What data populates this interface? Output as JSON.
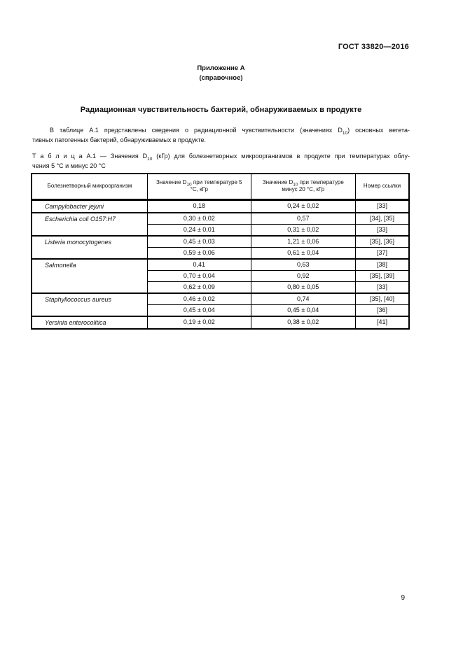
{
  "doc_number": "ГОСТ 33820—2016",
  "annex": {
    "title": "Приложение А",
    "subtitle": "(справочное)"
  },
  "section_title": "Радиационная чувствительность бактерий, обнаруживаемых в продукте",
  "intro": {
    "line1_before": "В таблице А.1 представлены сведения о радиационной чувствительности (значениях D",
    "line1_sub": "10",
    "line1_after": ") основных вегета-",
    "line2": "тивных патогенных бактерий, обнаруживаемых в продукте."
  },
  "table_caption": {
    "line1_before": "Т а б л и ц а  А.1 — Значения D",
    "line1_sub": "10",
    "line1_after": " (кГр) для болезнетворных микроорганизмов в продукте при температурах облу-",
    "line2": "чения 5 °С и минус 20 °С"
  },
  "table": {
    "headers": {
      "organism": "Болезнетворный микроорганизм",
      "d5_before": "Значение D",
      "d5_sub": "10",
      "d5_after": " при температуре 5 °С, кГр",
      "d20_before": "Значение D",
      "d20_sub": "10",
      "d20_after": " при температуре минус 20 °С, кГр",
      "ref": "Номер ссылки"
    },
    "rows": [
      {
        "organism": "Campylobacter jejuni",
        "d5": "0,18",
        "d20": "0,24 ± 0,02",
        "ref": "[33]"
      },
      {
        "organism": "Escherichia coli О157:H7",
        "d5": "0,30 ± 0,02",
        "d20": "0,57",
        "ref": "[34], [35]"
      },
      {
        "d5": "0,24 ± 0,01",
        "d20": "0,31 ± 0,02",
        "ref": "[33]"
      },
      {
        "organism": "Listeria monocytogenes",
        "d5": "0,45 ± 0,03",
        "d20": "1,21 ± 0,06",
        "ref": "[35], [36]"
      },
      {
        "d5": "0,59 ± 0,06",
        "d20": "0,61 ± 0,04",
        "ref": "[37]"
      },
      {
        "organism": "Salmonella",
        "d5": "0,41",
        "d20": "0,63",
        "ref": "[38]"
      },
      {
        "d5": "0,70 ± 0,04",
        "d20": "0,92",
        "ref": "[35], [39]"
      },
      {
        "d5": "0,62 ± 0,09",
        "d20": "0,80 ± 0,05",
        "ref": "[33]"
      },
      {
        "organism": "Staphyllococcus aureus",
        "d5": "0,46 ± 0,02",
        "d20": "0,74",
        "ref": "[35], [40]"
      },
      {
        "d5": "0,45 ± 0,04",
        "d20": "0,45 ± 0,04",
        "ref": "[36]"
      },
      {
        "organism": "Yersinia enterocolitica",
        "d5": "0,19 ± 0,02",
        "d20": "0,38 ± 0,02",
        "ref": "[41]"
      }
    ]
  },
  "page_number": "9"
}
